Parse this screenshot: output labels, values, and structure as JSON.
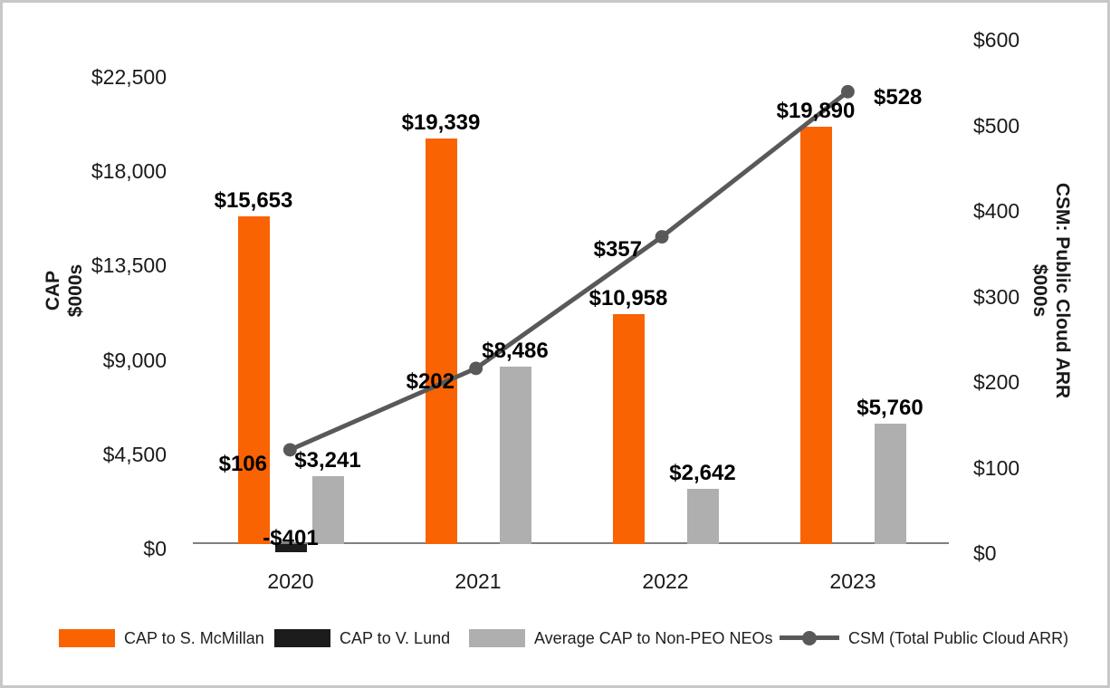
{
  "chart_data": {
    "type": "bar",
    "subtype": "grouped-bars-with-line-overlay",
    "title": "",
    "categories": [
      "2020",
      "2021",
      "2022",
      "2023"
    ],
    "series": [
      {
        "name": "CAP to S. McMillan",
        "type": "bar",
        "axis": "left",
        "color": "#F96302",
        "values": [
          15653,
          19339,
          10958,
          19890
        ],
        "labels": [
          "$15,653",
          "$19,339",
          "$10,958",
          "$19,890"
        ]
      },
      {
        "name": "CAP to V. Lund",
        "type": "bar",
        "axis": "left",
        "color": "#1C1C1C",
        "values": [
          -401,
          null,
          null,
          null
        ],
        "labels": [
          "-$401",
          "",
          "",
          ""
        ]
      },
      {
        "name": "Average CAP to Non-PEO NEOs",
        "type": "bar",
        "axis": "left",
        "color": "#AFAFAF",
        "values": [
          3241,
          8486,
          2642,
          5760
        ],
        "labels": [
          "$3,241",
          "$8,486",
          "$2,642",
          "$5,760"
        ]
      },
      {
        "name": "CSM (Total Public Cloud ARR)",
        "type": "line",
        "axis": "right",
        "color": "#595959",
        "values": [
          106,
          202,
          357,
          528
        ],
        "labels": [
          "$106",
          "$202",
          "$357",
          "$528"
        ]
      }
    ],
    "left_axis": {
      "title_line1": "CAP",
      "title_line2": "$000s",
      "min": 0,
      "max": 22500,
      "step": 4500,
      "ticks": [
        "$0",
        "$4,500",
        "$9,000",
        "$13,500",
        "$18,000",
        "$22,500"
      ]
    },
    "right_axis": {
      "title_line1": "CSM: Public Cloud ARR",
      "title_line2": "$000s",
      "min": 0,
      "max": 600,
      "step": 100,
      "ticks": [
        "$0",
        "$100",
        "$200",
        "$300",
        "$400",
        "$500",
        "$600"
      ]
    },
    "grid": false,
    "legend_position": "bottom"
  }
}
